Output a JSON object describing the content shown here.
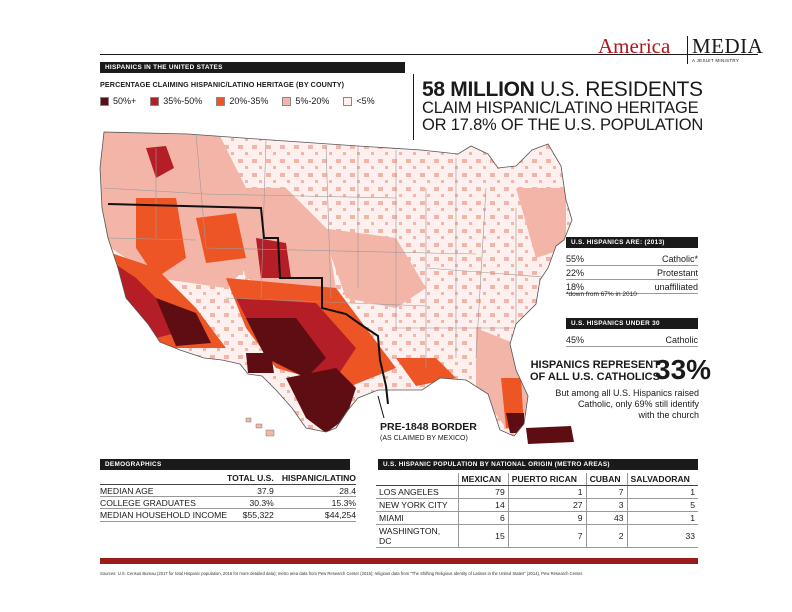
{
  "header": {
    "section_label": "HISPANICS IN THE UNITED STATES",
    "legend_title": "PERCENTAGE CLAIMING HISPANIC/LATINO HERITAGE (BY COUNTY)",
    "legend": [
      {
        "label": "50%+",
        "color": "#5e0e12"
      },
      {
        "label": "35%-50%",
        "color": "#b51d27"
      },
      {
        "label": "20%-35%",
        "color": "#ee5525"
      },
      {
        "label": "5%-20%",
        "color": "#f2b5a8"
      },
      {
        "label": "<5%",
        "color": "#fdf0ee"
      }
    ]
  },
  "logo": {
    "america": "America",
    "media": "MEDIA",
    "tagline": "A JESUIT MINISTRY"
  },
  "headline": {
    "line1_bold": "58 MILLION",
    "line1_rest": "U.S. RESIDENTS",
    "line2": "CLAIM HISPANIC/LATINO HERITAGE",
    "line3": "OR 17.8% OF THE U.S. POPULATION"
  },
  "map": {
    "border_label": "PRE-1848 BORDER",
    "border_sublabel": "(AS CLAIMED BY MEXICO)"
  },
  "religion": {
    "title": "U.S. HISPANICS ARE: (2013)",
    "rows": [
      {
        "pct": "55%",
        "label": "Catholic*"
      },
      {
        "pct": "22%",
        "label": "Protestant"
      },
      {
        "pct": "18%",
        "label": "unaffiliated"
      }
    ],
    "note": "*down from 67% in 2010"
  },
  "under30": {
    "title": "U.S. HISPANICS UNDER 30",
    "pct": "45%",
    "label": "Catholic"
  },
  "represent": {
    "line1": "HISPANICS REPRESENT",
    "line2": "OF ALL U.S. CATHOLICS",
    "pct": "33%",
    "body1": "But among all U.S. Hispanics raised",
    "body2": "Catholic, only 69% still identify",
    "body3": "with the church"
  },
  "demographics": {
    "title": "DEMOGRAPHICS",
    "col1": "TOTAL U.S.",
    "col2": "HISPANIC/LATINO",
    "rows": [
      {
        "label": "MEDIAN AGE",
        "total": "37.9",
        "hispanic": "28.4"
      },
      {
        "label": "COLLEGE GRADUATES",
        "total": "30.3%",
        "hispanic": "15.3%"
      },
      {
        "label": "MEDIAN HOUSEHOLD INCOME",
        "total": "$55,322",
        "hispanic": "$44,254"
      }
    ]
  },
  "origin": {
    "title": "U.S. HISPANIC POPULATION BY NATIONAL ORIGIN (METRO AREAS)",
    "columns": [
      "MEXICAN",
      "PUERTO RICAN",
      "CUBAN",
      "SALVADORAN"
    ],
    "rows": [
      {
        "city": "LOS ANGELES",
        "values": [
          "79",
          "1",
          "7",
          "1"
        ]
      },
      {
        "city": "NEW YORK CITY",
        "values": [
          "14",
          "27",
          "3",
          "5"
        ]
      },
      {
        "city": "MIAMI",
        "values": [
          "6",
          "9",
          "43",
          "1"
        ]
      },
      {
        "city": "WASHINGTON, DC",
        "values": [
          "15",
          "7",
          "2",
          "33"
        ]
      }
    ]
  },
  "sources": "Sources: U.S. Census Bureau (2017 for total Hispanic population, 2016 for more detailed data); metro area data from Pew Research Center (2015); religious data from \"The Shifting Religious Identity of Latinos in the United States\" (2014), Pew Research Center."
}
